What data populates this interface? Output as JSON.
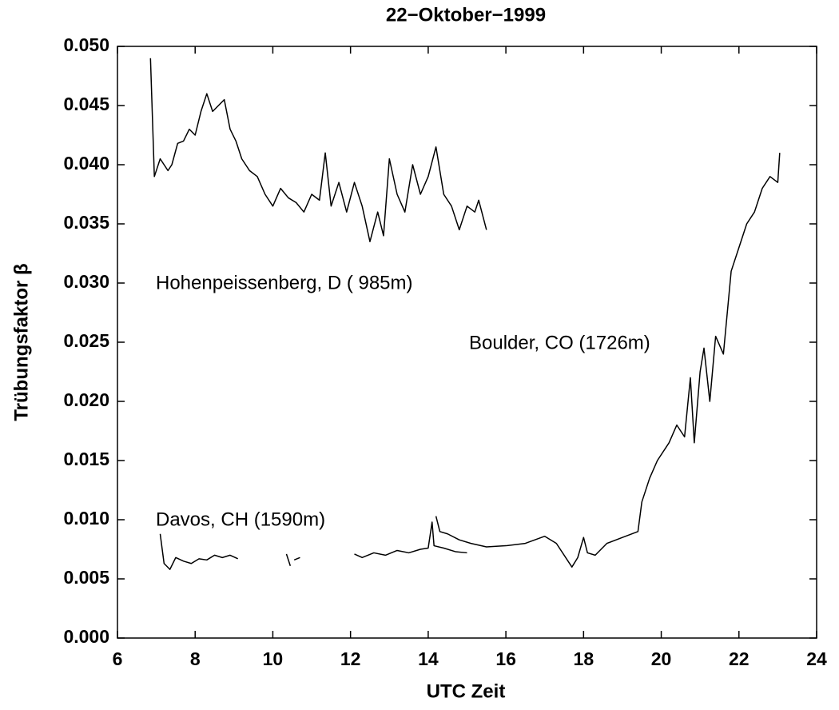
{
  "chart_data": {
    "type": "line",
    "title": "22−Oktober−1999",
    "xlabel": "UTC Zeit",
    "ylabel": "Trübungsfaktor β",
    "annotations": [
      "Hohenpeissenberg, D ( 985m)",
      "Boulder, CO (1726m)",
      "Davos, CH (1590m)"
    ],
    "xlim": [
      6,
      24
    ],
    "xticks": [
      6,
      8,
      10,
      12,
      14,
      16,
      18,
      20,
      22,
      24
    ],
    "ylim": [
      0,
      0.05
    ],
    "yticks": [
      {
        "value": 0,
        "label": "0.000"
      },
      {
        "value": 0.005,
        "label": "0.005"
      },
      {
        "value": 0.01,
        "label": "0.010"
      },
      {
        "value": 0.015,
        "label": "0.015"
      },
      {
        "value": 0.02,
        "label": "0.020"
      },
      {
        "value": 0.025,
        "label": "0.025"
      },
      {
        "value": 0.03,
        "label": "0.030"
      },
      {
        "value": 0.035,
        "label": "0.035"
      },
      {
        "value": 0.04,
        "label": "0.040"
      },
      {
        "value": 0.045,
        "label": "0.045"
      },
      {
        "value": 0.05,
        "label": "0.050"
      }
    ],
    "grid": false,
    "series": [
      {
        "color": "#000000",
        "x": [
          6.85,
          6.95,
          7.1,
          7.3,
          7.4,
          7.55,
          7.7,
          7.85,
          8.0,
          8.15,
          8.3,
          8.45,
          8.6,
          8.75,
          8.9,
          9.05,
          9.2,
          9.4,
          9.6,
          9.8,
          10.0,
          10.2,
          10.4,
          10.6,
          10.8,
          11.0,
          11.2,
          11.35,
          11.5,
          11.7,
          11.9,
          12.1,
          12.3,
          12.5,
          12.7,
          12.85,
          13.0,
          13.2,
          13.4,
          13.6,
          13.8,
          14.0,
          14.2,
          14.4,
          14.6,
          14.8,
          15.0,
          15.2,
          15.3,
          15.5
        ],
        "values": [
          0.049,
          0.039,
          0.0405,
          0.0395,
          0.04,
          0.0418,
          0.042,
          0.043,
          0.0425,
          0.0445,
          0.046,
          0.0445,
          0.045,
          0.0455,
          0.043,
          0.042,
          0.0405,
          0.0395,
          0.039,
          0.0375,
          0.0365,
          0.038,
          0.0372,
          0.0368,
          0.036,
          0.0375,
          0.037,
          0.041,
          0.0365,
          0.0385,
          0.036,
          0.0385,
          0.0365,
          0.0335,
          0.036,
          0.034,
          0.0405,
          0.0375,
          0.036,
          0.04,
          0.0375,
          0.039,
          0.0415,
          0.0375,
          0.0365,
          0.0345,
          0.0365,
          0.036,
          0.037,
          0.0345
        ]
      },
      {
        "color": "#000000",
        "x": [
          7.1,
          7.2,
          7.35,
          7.5,
          7.7,
          7.9,
          8.1,
          8.3,
          8.5,
          8.7,
          8.9,
          9.1,
          9.3,
          10.35,
          10.45,
          10.5,
          10.55,
          10.7,
          11.0,
          12.1,
          12.3,
          12.6,
          12.9,
          13.2,
          13.5,
          13.8,
          14.0,
          14.1,
          14.15,
          14.4,
          14.7,
          15.0
        ],
        "values": [
          0.0088,
          0.0063,
          0.0058,
          0.0068,
          0.0065,
          0.0063,
          0.0067,
          0.0066,
          0.007,
          0.0068,
          0.007,
          0.0067,
          null,
          0.0071,
          0.0061,
          null,
          0.0066,
          0.0068,
          null,
          0.0071,
          0.0068,
          0.0072,
          0.007,
          0.0074,
          0.0072,
          0.0075,
          0.0076,
          0.0098,
          0.0078,
          0.0076,
          0.0073,
          0.0072
        ]
      },
      {
        "color": "#000000",
        "x": [
          14.2,
          14.3,
          14.5,
          14.8,
          15.1,
          15.5,
          16.0,
          16.5,
          17.0,
          17.3,
          17.7,
          17.85,
          18.0,
          18.1,
          18.3,
          18.6,
          19.0,
          19.4,
          19.5,
          19.7,
          19.9,
          20.2,
          20.4,
          20.6,
          20.75,
          20.85,
          21.0,
          21.1,
          21.25,
          21.4,
          21.6,
          21.8,
          22.0,
          22.2,
          22.4,
          22.6,
          22.8,
          23.0,
          23.05
        ],
        "values": [
          0.0103,
          0.009,
          0.0088,
          0.0083,
          0.008,
          0.0077,
          0.0078,
          0.008,
          0.0086,
          0.008,
          0.006,
          0.0068,
          0.0085,
          0.0072,
          0.007,
          0.008,
          0.0085,
          0.009,
          0.0115,
          0.0135,
          0.015,
          0.0165,
          0.018,
          0.017,
          0.022,
          0.0165,
          0.0225,
          0.0245,
          0.02,
          0.0255,
          0.024,
          0.031,
          0.033,
          0.035,
          0.036,
          0.038,
          0.039,
          0.0385,
          0.041
        ]
      }
    ]
  }
}
